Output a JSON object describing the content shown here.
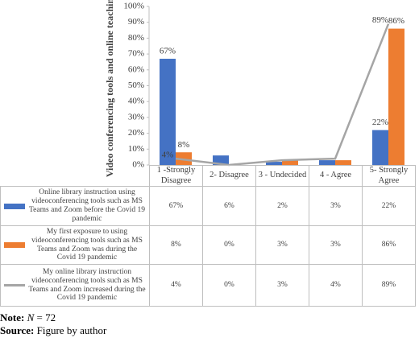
{
  "chart_data": {
    "type": "bar",
    "y_label": "Video conferencing tools and online teaching",
    "categories": [
      "1 -Strongly Disagree",
      "2- Disagree",
      "3 - Undecided",
      "4 - Agree",
      "5- Strongly Agree"
    ],
    "series": [
      {
        "name": "Online library instruction using videoconferencing tools such as MS Teams and Zoom before the Covid 19 pandemic",
        "color": "#4472c4",
        "type": "bar",
        "values": [
          67,
          6,
          2,
          3,
          22
        ],
        "value_labels": [
          "67%",
          "6%",
          "2%",
          "3%",
          "22%"
        ]
      },
      {
        "name": "My first exposure to using videoconferencing tools such as MS Teams and Zoom was during the Covid 19 pandemic",
        "color": "#ed7d31",
        "type": "bar",
        "values": [
          8,
          0,
          3,
          3,
          86
        ],
        "value_labels": [
          "8%",
          "0%",
          "3%",
          "3%",
          "86%"
        ]
      },
      {
        "name": "My online library instruction videoconferencing tools such as MS Teams and Zoom increased during the Covid 19 pandemic",
        "color": "#a5a5a5",
        "type": "line",
        "values": [
          4,
          0,
          3,
          4,
          89
        ],
        "value_labels": [
          "4%",
          "0%",
          "3%",
          "4%",
          "89%"
        ]
      }
    ],
    "ylim": [
      0,
      100
    ],
    "yticks": [
      {
        "value": 0,
        "label": "0%"
      },
      {
        "value": 10,
        "label": "10%"
      },
      {
        "value": 20,
        "label": "20%"
      },
      {
        "value": 30,
        "label": "30%"
      },
      {
        "value": 40,
        "label": "40%"
      },
      {
        "value": 50,
        "label": "50%"
      },
      {
        "value": 60,
        "label": "60%"
      },
      {
        "value": 70,
        "label": "70%"
      },
      {
        "value": 80,
        "label": "80%"
      },
      {
        "value": 90,
        "label": "90%"
      },
      {
        "value": 100,
        "label": "100%"
      }
    ],
    "grid": false
  },
  "note": {
    "label": "Note:",
    "variable": "N",
    "text": "= 72"
  },
  "source": {
    "label": "Source:",
    "text": "Figure by author"
  }
}
